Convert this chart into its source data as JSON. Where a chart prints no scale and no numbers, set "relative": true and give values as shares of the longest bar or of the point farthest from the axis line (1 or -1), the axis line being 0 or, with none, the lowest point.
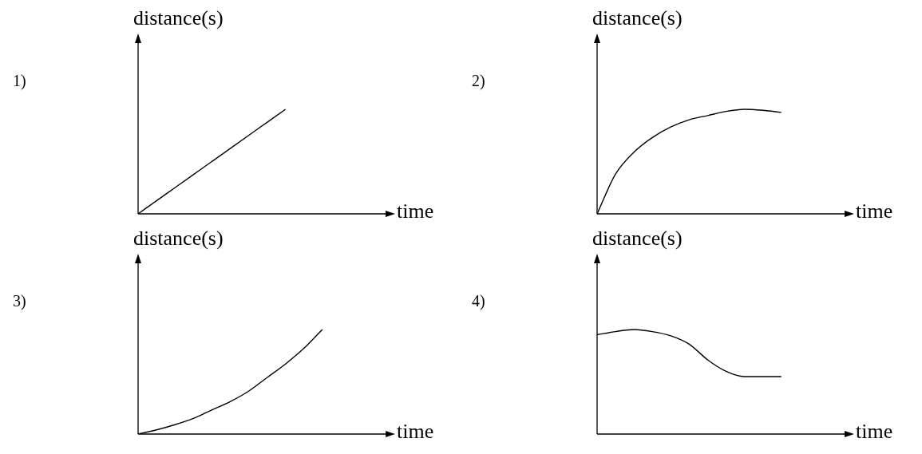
{
  "chart_data": [
    {
      "type": "line",
      "annotations": [
        "1)"
      ],
      "xlabel": "time",
      "ylabel": "distance(s)",
      "relative": true,
      "categories": [
        null,
        null,
        null,
        null,
        null,
        null,
        null,
        null,
        null,
        null,
        null,
        null,
        null,
        null
      ],
      "series": [
        {
          "color": "#000000",
          "values": [
            0,
            0.125,
            0.25,
            0.375,
            0.5,
            0.625,
            0.75,
            0.875,
            1,
            null,
            null,
            null,
            null,
            null
          ]
        }
      ]
    },
    {
      "type": "line",
      "annotations": [
        "2)"
      ],
      "xlabel": "time",
      "ylabel": "distance(s)",
      "relative": true,
      "categories": [
        null,
        null,
        null,
        null,
        null,
        null,
        null,
        null,
        null,
        null,
        null,
        null,
        null,
        null
      ],
      "series": [
        {
          "color": "#000000",
          "values": [
            0,
            0.38,
            0.59,
            0.73,
            0.83,
            0.9,
            0.94,
            0.98,
            1,
            0.99,
            0.97,
            null,
            null,
            null
          ]
        }
      ]
    },
    {
      "type": "line",
      "annotations": [
        "3)"
      ],
      "xlabel": "time",
      "ylabel": "distance(s)",
      "relative": true,
      "categories": [
        null,
        null,
        null,
        null,
        null,
        null,
        null,
        null,
        null,
        null,
        null,
        null,
        null,
        null
      ],
      "series": [
        {
          "color": "#000000",
          "values": [
            0,
            0.04,
            0.09,
            0.15,
            0.23,
            0.31,
            0.41,
            0.54,
            0.67,
            0.82,
            1,
            null,
            null,
            null
          ]
        }
      ]
    },
    {
      "type": "line",
      "annotations": [
        "4)"
      ],
      "xlabel": "time",
      "ylabel": "distance(s)",
      "relative": true,
      "categories": [
        null,
        null,
        null,
        null,
        null,
        null,
        null,
        null,
        null,
        null,
        null,
        null,
        null,
        null
      ],
      "series": [
        {
          "color": "#000000",
          "values": [
            0.95,
            0.98,
            1,
            0.98,
            0.94,
            0.86,
            0.71,
            0.6,
            0.55,
            0.55,
            0.55,
            null,
            null,
            null
          ]
        }
      ]
    }
  ]
}
